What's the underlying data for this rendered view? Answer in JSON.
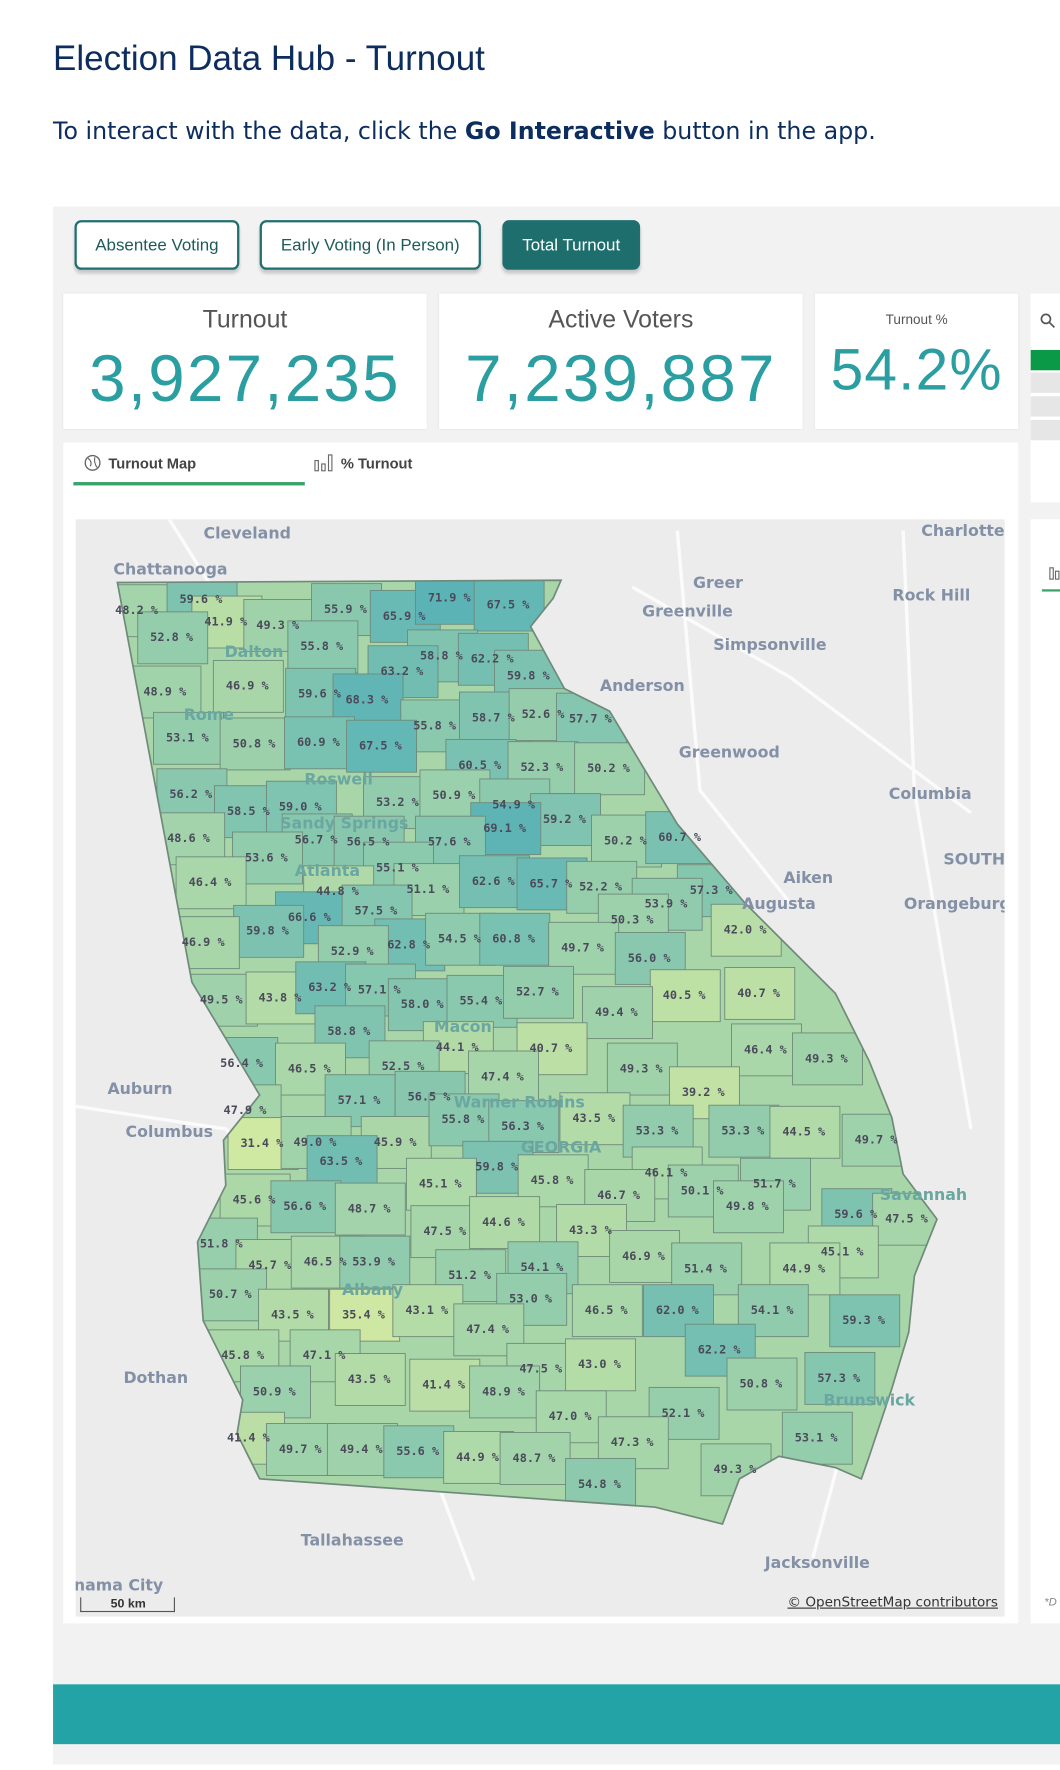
{
  "page": {
    "title": "Election Data Hub - Turnout",
    "intro_before": "To interact with the data, click the ",
    "intro_bold": "Go Interactive",
    "intro_after": " button in the app."
  },
  "buttons": [
    {
      "label": "Absentee Voting",
      "active": false
    },
    {
      "label": "Early Voting (In Person)",
      "active": false
    },
    {
      "label": "Total Turnout",
      "active": true
    }
  ],
  "kpis": {
    "turnout": {
      "label": "Turnout",
      "value": "3,927,235"
    },
    "active_voters": {
      "label": "Active Voters",
      "value": "7,239,887"
    },
    "turnout_pct": {
      "label": "Turnout %",
      "value": "54.2%"
    }
  },
  "tabs": [
    {
      "label": "Turnout Map",
      "icon": "globe-icon",
      "active": true
    },
    {
      "label": "% Turnout",
      "icon": "bar-chart-icon",
      "active": false
    }
  ],
  "map": {
    "scale_label": "50 km",
    "attribution": "© OpenStreetMap contributors",
    "color_low": "#cfe8a2",
    "color_high": "#5bb3b6",
    "cities": [
      "Cleveland",
      "Chattanooga",
      "Greer",
      "Greenville",
      "Simpsonville",
      "Anderson",
      "Greenwood",
      "Charlotte",
      "Rock Hill",
      "Columbia",
      "SOUTH",
      "Aiken",
      "Augusta",
      "Orangeburg",
      "Roswell",
      "Sandy Springs",
      "Atlanta",
      "Dalton",
      "Rome",
      "Macon",
      "Warner Robins",
      "GEORGIA",
      "Auburn",
      "Columbus",
      "Albany",
      "Savannah",
      "Brunswick",
      "Dothan",
      "Tallahassee",
      "Jacksonville",
      "nama City"
    ],
    "county_labels": [
      "48.2 %",
      "59.6 %",
      "41.9 %",
      "49.3 %",
      "52.8 %",
      "55.9 %",
      "65.9 %",
      "71.9 %",
      "67.5 %",
      "55.8 %",
      "58.8 %",
      "62.2 %",
      "63.2 %",
      "59.8 %",
      "48.9 %",
      "46.9 %",
      "59.6 %",
      "68.3 %",
      "55.8 %",
      "58.7 %",
      "52.6 %",
      "57.7 %",
      "53.1 %",
      "50.8 %",
      "60.9 %",
      "67.5 %",
      "60.5 %",
      "52.3 %",
      "50.2 %",
      "56.2 %",
      "58.5 %",
      "59.0 %",
      "53.2 %",
      "50.9 %",
      "54.9 %",
      "59.2 %",
      "48.6 %",
      "56.7 %",
      "56.5 %",
      "69.1 %",
      "57.6 %",
      "50.2 %",
      "60.7 %",
      "53.6 %",
      "55.1 %",
      "46.4 %",
      "44.8 %",
      "51.1 %",
      "62.6 %",
      "65.7 %",
      "52.2 %",
      "57.3 %",
      "53.9 %",
      "66.6 %",
      "57.5 %",
      "50.3 %",
      "59.8 %",
      "62.8 %",
      "54.5 %",
      "60.8 %",
      "49.7 %",
      "42.0 %",
      "46.9 %",
      "52.9 %",
      "56.0 %",
      "49.5 %",
      "43.8 %",
      "63.2 %",
      "57.1 %",
      "58.0 %",
      "55.4 %",
      "52.7 %",
      "40.5 %",
      "40.7 %",
      "49.4 %",
      "58.8 %",
      "44.1 %",
      "40.7 %",
      "46.4 %",
      "49.3 %",
      "56.4 %",
      "46.5 %",
      "52.5 %",
      "47.4 %",
      "49.3 %",
      "57.1 %",
      "56.5 %",
      "39.2 %",
      "47.9 %",
      "43.5 %",
      "53.3 %",
      "53.3 %",
      "44.5 %",
      "49.7 %",
      "31.4 %",
      "49.0 %",
      "45.9 %",
      "55.8 %",
      "56.3 %",
      "63.5 %",
      "59.8 %",
      "45.8 %",
      "45.1 %",
      "46.1 %",
      "46.7 %",
      "50.1 %",
      "51.7 %",
      "45.6 %",
      "56.6 %",
      "48.7 %",
      "49.8 %",
      "59.6 %",
      "47.5 %",
      "51.8 %",
      "47.5 %",
      "44.6 %",
      "43.3 %",
      "45.1 %",
      "45.7 %",
      "46.5 %",
      "53.9 %",
      "46.9 %",
      "51.4 %",
      "44.9 %",
      "54.1 %",
      "51.2 %",
      "50.7 %",
      "53.0 %",
      "43.5 %",
      "35.4 %",
      "43.1 %",
      "46.5 %",
      "62.0 %",
      "54.1 %",
      "59.3 %",
      "47.4 %",
      "62.2 %",
      "45.8 %",
      "47.1 %",
      "47.5 %",
      "43.0 %",
      "43.5 %",
      "41.4 %",
      "48.9 %",
      "50.8 %",
      "57.3 %",
      "50.9 %",
      "47.0 %",
      "52.1 %",
      "41.4 %",
      "49.7 %",
      "49.4 %",
      "55.6 %",
      "44.9 %",
      "48.7 %",
      "47.3 %",
      "53.1 %",
      "49.3 %",
      "54.8 %"
    ]
  },
  "right_panel": {
    "footnote": "*D"
  }
}
